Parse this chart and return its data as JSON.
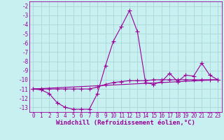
{
  "xlabel": "Windchill (Refroidissement éolien,°C)",
  "bg_color": "#c8f0f0",
  "grid_color": "#a8d8d8",
  "line_color": "#990099",
  "xlim": [
    -0.5,
    23.5
  ],
  "ylim": [
    -13.5,
    -1.5
  ],
  "xticks": [
    0,
    1,
    2,
    3,
    4,
    5,
    6,
    7,
    8,
    9,
    10,
    11,
    12,
    13,
    14,
    15,
    16,
    17,
    18,
    19,
    20,
    21,
    22,
    23
  ],
  "yticks": [
    -2,
    -3,
    -4,
    -5,
    -6,
    -7,
    -8,
    -9,
    -10,
    -11,
    -12,
    -13
  ],
  "curve1_x": [
    0,
    1,
    2,
    3,
    4,
    5,
    6,
    7,
    8,
    9,
    10,
    11,
    12,
    13,
    14,
    15,
    16,
    17,
    18,
    19,
    20,
    21,
    22,
    23
  ],
  "curve1_y": [
    -11.0,
    -11.1,
    -11.5,
    -12.5,
    -13.0,
    -13.2,
    -13.2,
    -13.2,
    -11.5,
    -8.5,
    -5.8,
    -4.2,
    -2.5,
    -4.8,
    -10.3,
    -10.5,
    -10.2,
    -9.3,
    -10.2,
    -9.5,
    -9.6,
    -8.2,
    -9.5,
    -10.0
  ],
  "curve2_x": [
    0,
    1,
    2,
    3,
    4,
    5,
    6,
    7,
    8,
    9,
    10,
    11,
    12,
    13,
    14,
    15,
    16,
    17,
    18,
    19,
    20,
    21,
    22,
    23
  ],
  "curve2_y": [
    -11.0,
    -11.0,
    -11.0,
    -11.0,
    -11.0,
    -11.0,
    -11.0,
    -11.0,
    -10.8,
    -10.5,
    -10.3,
    -10.2,
    -10.1,
    -10.1,
    -10.1,
    -10.0,
    -10.0,
    -10.0,
    -10.0,
    -10.0,
    -10.0,
    -10.0,
    -10.0,
    -10.0
  ],
  "curve3_x": [
    0,
    23
  ],
  "curve3_y": [
    -11.0,
    -10.0
  ],
  "font_family": "monospace",
  "xlabel_fontsize": 6.5,
  "tick_fontsize": 5.5,
  "marker": "+",
  "markersize": 4,
  "lw": 0.8
}
